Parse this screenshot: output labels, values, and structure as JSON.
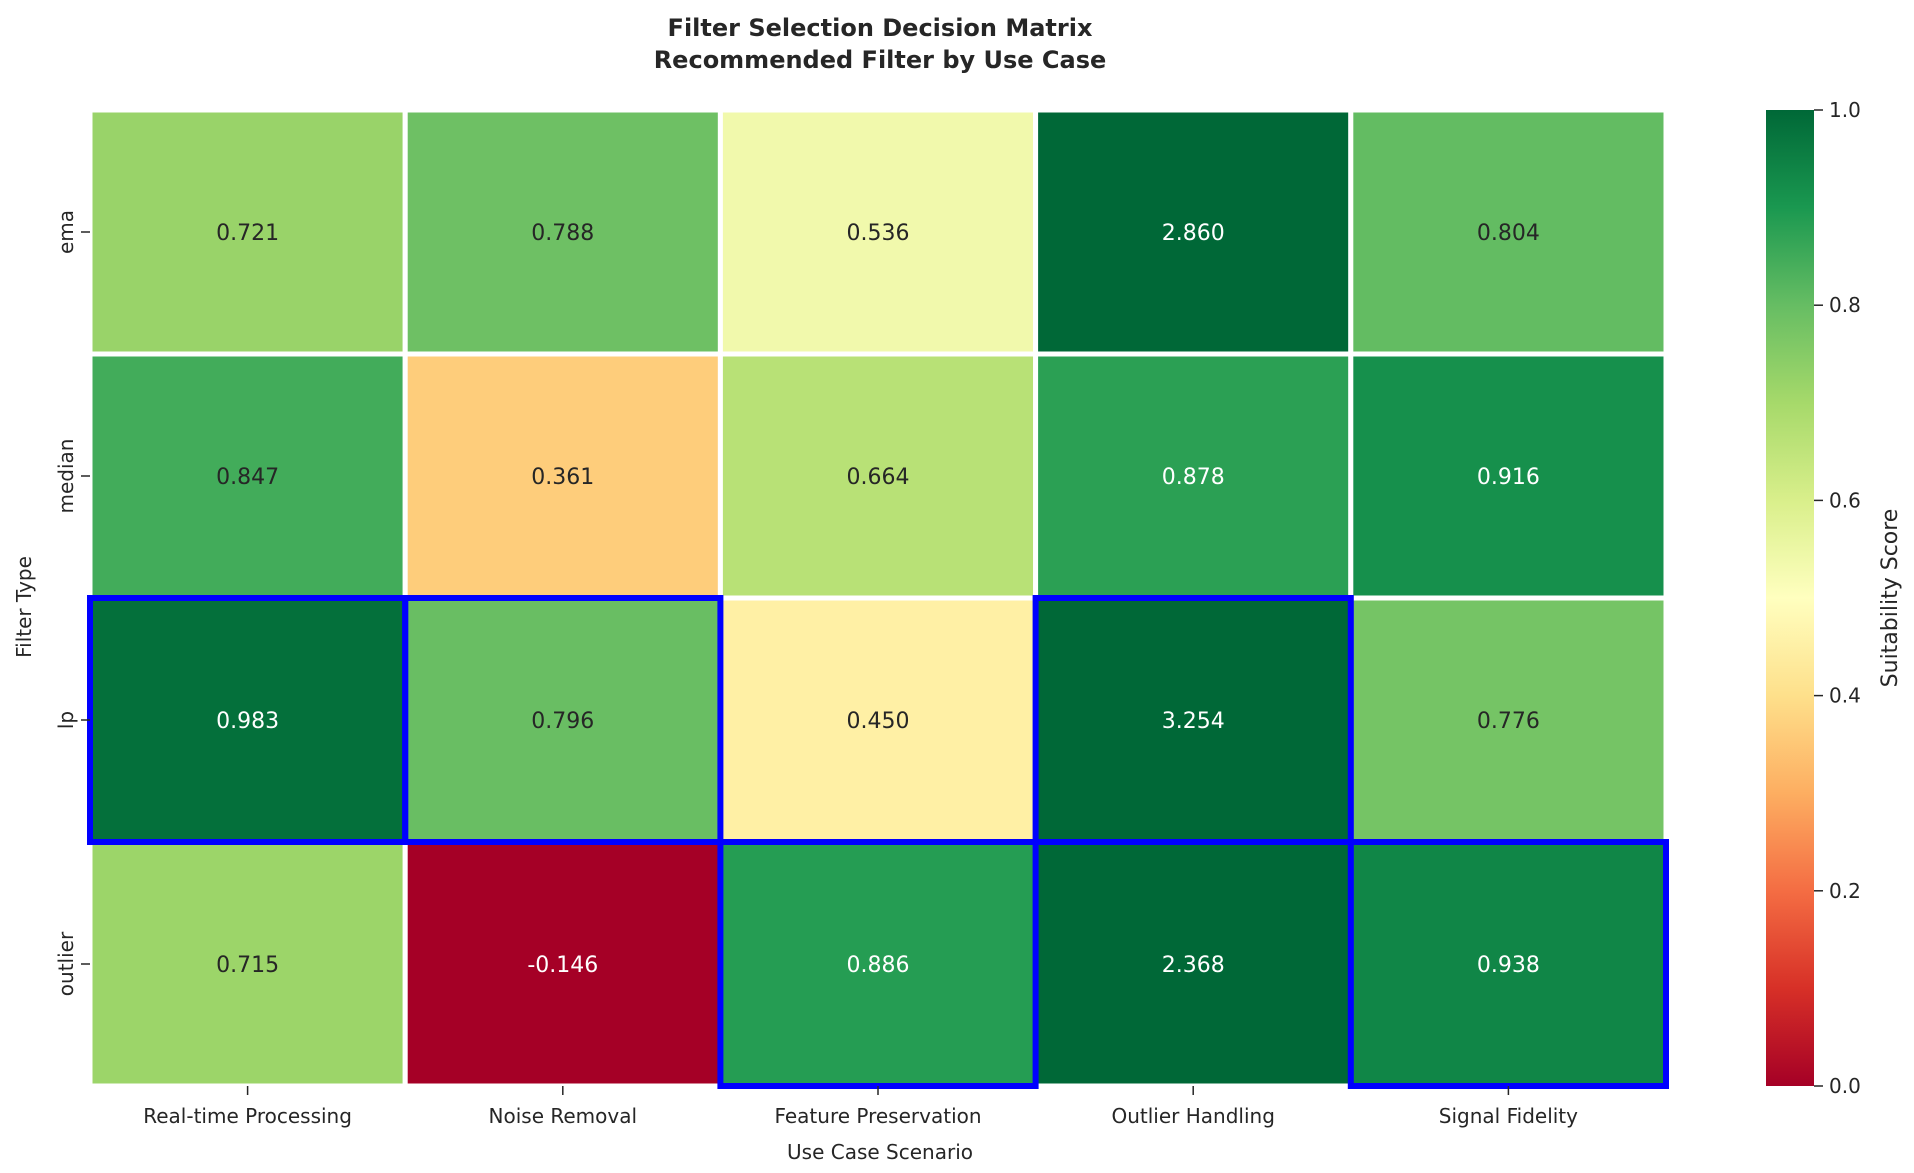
{
  "chart_data": {
    "type": "heatmap",
    "title_line1": "Filter Selection Decision Matrix",
    "title_line2": "Recommended Filter by Use Case",
    "xlabel": "Use Case Scenario",
    "ylabel": "Filter Type",
    "columns": [
      "Real-time Processing",
      "Noise Removal",
      "Feature Preservation",
      "Outlier Handling",
      "Signal Fidelity"
    ],
    "rows": [
      "ema",
      "median",
      "lp",
      "outlier"
    ],
    "values": [
      [
        0.721,
        0.788,
        0.536,
        2.86,
        0.804
      ],
      [
        0.847,
        0.361,
        0.664,
        0.878,
        0.916
      ],
      [
        0.983,
        0.796,
        0.45,
        3.254,
        0.776
      ],
      [
        0.715,
        -0.146,
        0.886,
        2.368,
        0.938
      ]
    ],
    "labels": [
      [
        "0.721",
        "0.788",
        "0.536",
        "2.860",
        "0.804"
      ],
      [
        "0.847",
        "0.361",
        "0.664",
        "0.878",
        "0.916"
      ],
      [
        "0.983",
        "0.796",
        "0.450",
        "3.254",
        "0.776"
      ],
      [
        "0.715",
        "-0.146",
        "0.886",
        "2.368",
        "0.938"
      ]
    ],
    "highlighted": [
      {
        "row": "lp",
        "column": "Real-time Processing"
      },
      {
        "row": "lp",
        "column": "Noise Removal"
      },
      {
        "row": "outlier",
        "column": "Feature Preservation"
      },
      {
        "row": "lp",
        "column": "Outlier Handling"
      },
      {
        "row": "outlier",
        "column": "Signal Fidelity"
      }
    ],
    "highlight_color": "#0000ff",
    "colormap": "RdYlGn",
    "vmin": 0.0,
    "vmax": 1.0,
    "colorbar": {
      "label": "Suitability Score",
      "ticks": [
        0.0,
        0.2,
        0.4,
        0.6,
        0.8,
        1.0
      ],
      "tick_labels": [
        "0.0",
        "0.2",
        "0.4",
        "0.6",
        "0.8",
        "1.0"
      ]
    }
  }
}
